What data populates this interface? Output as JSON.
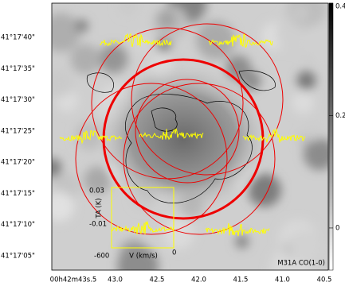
{
  "y_axis_labels": [
    "41°17'40\"",
    "41°17'35\"",
    "41°17'30\"",
    "41°17'25\"",
    "41°17'20\"",
    "41°17'15\"",
    "41°17'10\"",
    "41°17'05\""
  ],
  "x_axis_labels": [
    "00h42m43s.5",
    "43.0",
    "42.5",
    "42.0",
    "41.5",
    "41.0",
    "40.5"
  ],
  "colorbar": {
    "lim": [
      -0.075,
      0.4
    ],
    "ticks": [
      0,
      0.2,
      0.4
    ]
  },
  "inset": {
    "y_top": "0.03",
    "y_bottom": "-0.01",
    "y_label": "TA (K)",
    "x_left": "-600",
    "x_right": "0",
    "x_label": "V (km/s)"
  },
  "label": "M31A  CO(1-0)"
}
